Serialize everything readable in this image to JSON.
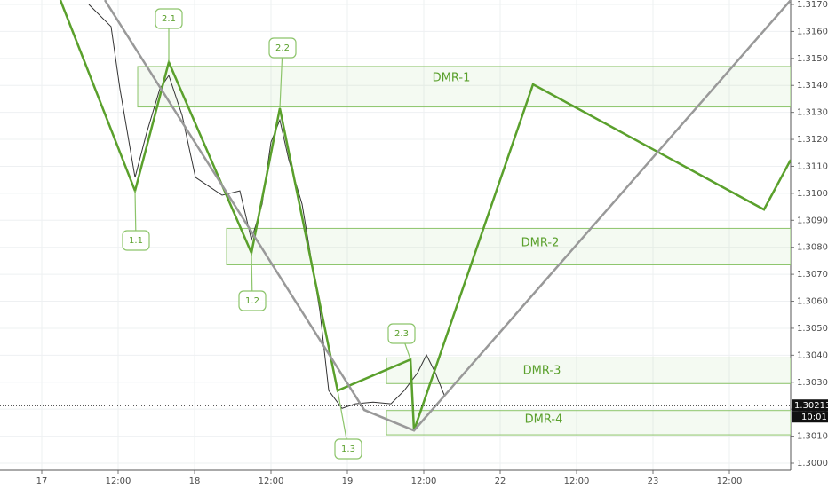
{
  "chart_data": {
    "type": "line",
    "categories": [
      "17",
      "12:00",
      "18",
      "12:00",
      "19",
      "12:00",
      "22",
      "12:00",
      "23",
      "12:00"
    ],
    "ylim": [
      1.3,
      1.317
    ],
    "yticks": [
      {
        "value": 1.3,
        "label": "1.30000"
      },
      {
        "value": 1.301,
        "label": "1.30100"
      },
      {
        "value": 1.302,
        "label": "1.30200"
      },
      {
        "value": 1.303,
        "label": "1.30300"
      },
      {
        "value": 1.304,
        "label": "1.30400"
      },
      {
        "value": 1.305,
        "label": "1.30500"
      },
      {
        "value": 1.306,
        "label": "1.30600"
      },
      {
        "value": 1.307,
        "label": "1.30700"
      },
      {
        "value": 1.308,
        "label": "1.30800"
      },
      {
        "value": 1.309,
        "label": "1.30900"
      },
      {
        "value": 1.31,
        "label": "1.31000"
      },
      {
        "value": 1.311,
        "label": "1.31100"
      },
      {
        "value": 1.312,
        "label": "1.31200"
      },
      {
        "value": 1.313,
        "label": "1.31300"
      },
      {
        "value": 1.314,
        "label": "1.31400"
      },
      {
        "value": 1.315,
        "label": "1.31500"
      },
      {
        "value": 1.316,
        "label": "1.31600"
      },
      {
        "value": 1.317,
        "label": "1.31700"
      }
    ],
    "grid": true,
    "series": [
      {
        "color": "#333333",
        "x": [
          0.616,
          0.907,
          1.023,
          1.221,
          1.372,
          1.547,
          1.663,
          1.837,
          2.012,
          2.186,
          2.36,
          2.593,
          2.744,
          2.884,
          3.0,
          3.116,
          3.233,
          3.407,
          3.523,
          3.64,
          3.756,
          3.93,
          4.105,
          4.337,
          4.57,
          4.744,
          4.919,
          5.035,
          5.151,
          5.267
        ],
        "values": [
          1.317,
          1.31618,
          1.31388,
          1.31059,
          1.31223,
          1.31388,
          1.31437,
          1.31289,
          1.31059,
          1.31026,
          1.30993,
          1.31009,
          1.30828,
          1.3096,
          1.3119,
          1.31272,
          1.31124,
          1.3096,
          1.30763,
          1.30565,
          1.30269,
          1.30203,
          1.3022,
          1.30226,
          1.3022,
          1.30269,
          1.30335,
          1.30401,
          1.30335,
          1.30253
        ]
      },
      {
        "color": "#5aa02c",
        "x": [
          0.244,
          1.221,
          1.663,
          2.744,
          3.116,
          3.872,
          4.826,
          4.872,
          6.43,
          9.453,
          9.802
        ],
        "values": [
          1.31716,
          1.31009,
          1.31486,
          1.30779,
          1.31315,
          1.30269,
          1.30384,
          1.30121,
          1.31404,
          1.3094,
          1.31124
        ]
      },
      {
        "color": "#999999",
        "x": [
          0.826,
          4.221,
          4.872,
          9.802
        ],
        "values": [
          1.31716,
          1.30197,
          1.30121,
          1.31716
        ]
      }
    ],
    "zones": [
      {
        "label": "DMR-1",
        "high": 1.3147,
        "low": 1.3132,
        "x_start": 1.256
      },
      {
        "label": "DMR-2",
        "high": 1.3087,
        "low": 1.30735,
        "x_start": 2.419
      },
      {
        "label": "DMR-3",
        "high": 1.3039,
        "low": 1.30295,
        "x_start": 4.512
      },
      {
        "label": "DMR-4",
        "high": 1.30195,
        "low": 1.30105,
        "x_start": 4.512
      }
    ],
    "waves": [
      "1.1",
      "2.1",
      "2.2",
      "1.2",
      "1.3",
      "2.3"
    ],
    "last_price": {
      "value": 1.30213,
      "label": "1.30213"
    },
    "countdown": "10:01"
  }
}
